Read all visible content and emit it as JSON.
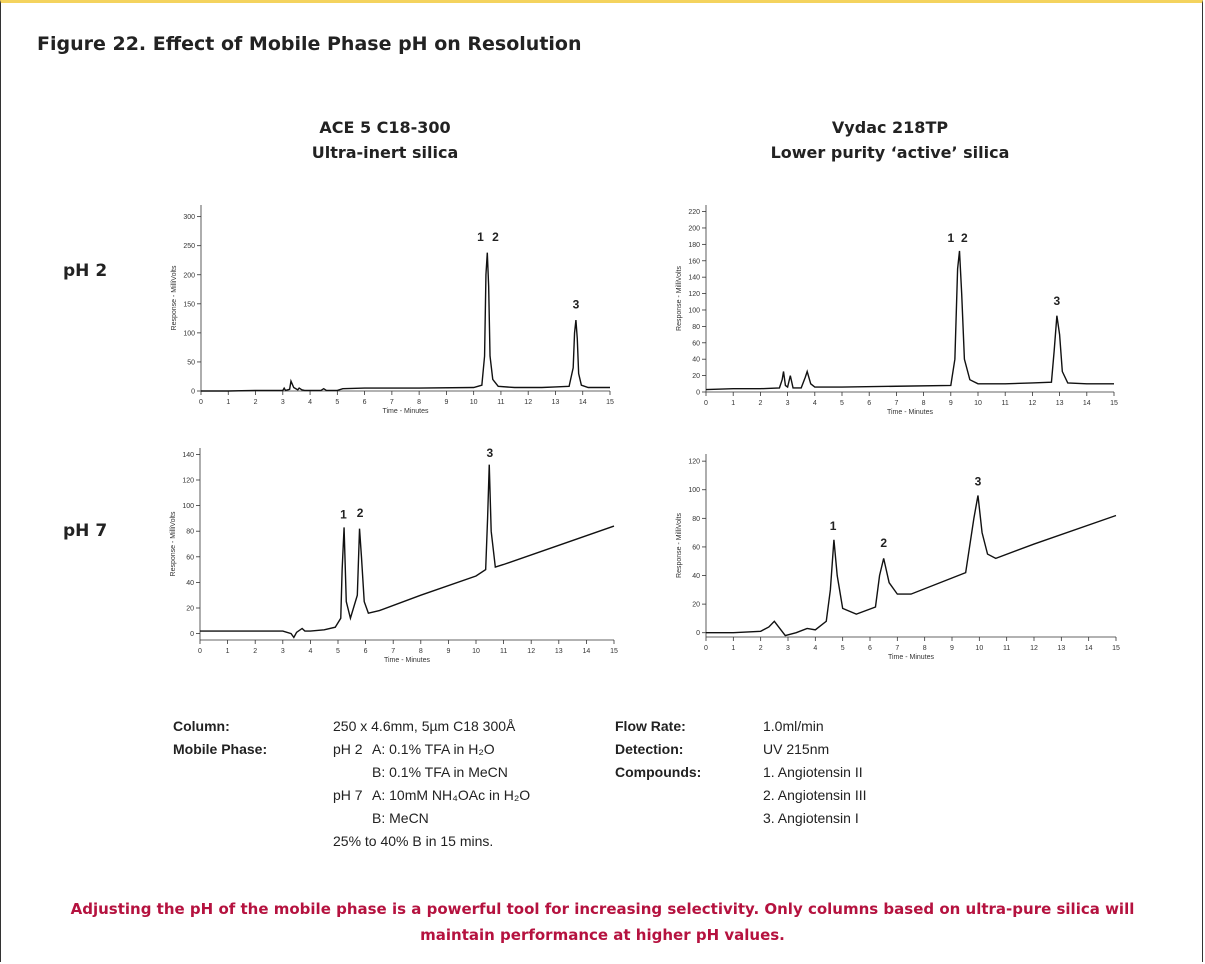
{
  "title": "Figure 22. Effect of Mobile Phase pH on Resolution",
  "columns": [
    {
      "name": "ACE 5 C18-300",
      "subtitle": "Ultra-inert silica"
    },
    {
      "name": "Vydac 218TP",
      "subtitle": "Lower purity ‘active’ silica"
    }
  ],
  "rows": [
    "pH 2",
    "pH 7"
  ],
  "chart_data": [
    {
      "type": "line",
      "x_label": "Time - Minutes",
      "y_label": "Response - MilliVolts",
      "color": "#111111",
      "xlim": [
        0,
        15
      ],
      "xticks": [
        0,
        1,
        2,
        3,
        4,
        5,
        6,
        7,
        8,
        9,
        10,
        11,
        12,
        13,
        14,
        15
      ],
      "ylim": [
        0,
        320
      ],
      "yticks": [
        0,
        50,
        100,
        150,
        200,
        250,
        300
      ],
      "x": [
        0,
        1,
        2,
        3,
        3.05,
        3.1,
        3.25,
        3.3,
        3.4,
        3.55,
        3.6,
        3.7,
        3.8,
        4,
        4.4,
        4.5,
        4.6,
        5,
        5.2,
        6,
        8,
        10,
        10.3,
        10.4,
        10.45,
        10.5,
        10.55,
        10.6,
        10.7,
        10.9,
        11.5,
        12,
        12.5,
        13,
        13.5,
        13.65,
        13.7,
        13.75,
        13.8,
        13.85,
        13.95,
        14.2,
        15
      ],
      "values": [
        0,
        0,
        1,
        1,
        5,
        1,
        3,
        17,
        6,
        2,
        5,
        2,
        1,
        1,
        1,
        4,
        1,
        1,
        4,
        5,
        5,
        6,
        10,
        60,
        200,
        238,
        180,
        60,
        20,
        8,
        6,
        6,
        6,
        7,
        8,
        40,
        100,
        122,
        90,
        30,
        10,
        6,
        6
      ],
      "annotations": [
        {
          "text": "1",
          "x": 10.25,
          "y": 258
        },
        {
          "text": "2",
          "x": 10.8,
          "y": 258
        },
        {
          "text": "3",
          "x": 13.75,
          "y": 142
        }
      ]
    },
    {
      "type": "line",
      "x_label": "Time - Minutes",
      "y_label": "Response - MilliVolts",
      "color": "#111111",
      "xlim": [
        0,
        15
      ],
      "xticks": [
        0,
        1,
        2,
        3,
        4,
        5,
        6,
        7,
        8,
        9,
        10,
        11,
        12,
        13,
        14,
        15
      ],
      "ylim": [
        0,
        228
      ],
      "yticks": [
        0,
        20,
        40,
        60,
        80,
        100,
        120,
        140,
        160,
        180,
        200,
        220
      ],
      "x": [
        0,
        1,
        2,
        2.7,
        2.8,
        2.85,
        2.92,
        3.0,
        3.1,
        3.2,
        3.5,
        3.65,
        3.72,
        3.85,
        4,
        5,
        7,
        9,
        9.15,
        9.25,
        9.32,
        9.4,
        9.5,
        9.7,
        10,
        11,
        12,
        12.7,
        12.8,
        12.9,
        13.0,
        13.1,
        13.3,
        14,
        15
      ],
      "values": [
        3,
        4,
        4,
        5,
        15,
        25,
        8,
        6,
        20,
        5,
        5,
        18,
        25,
        10,
        6,
        6,
        7,
        8,
        40,
        150,
        172,
        120,
        40,
        15,
        10,
        10,
        11,
        12,
        50,
        93,
        70,
        25,
        11,
        10,
        10
      ],
      "annotations": [
        {
          "text": "1",
          "x": 9.0,
          "y": 183
        },
        {
          "text": "2",
          "x": 9.5,
          "y": 183
        },
        {
          "text": "3",
          "x": 12.9,
          "y": 106
        }
      ]
    },
    {
      "type": "line",
      "x_label": "Time - Minutes",
      "y_label": "Response - MilliVolts",
      "color": "#111111",
      "xlim": [
        0,
        15
      ],
      "xticks": [
        0,
        1,
        2,
        3,
        4,
        5,
        6,
        7,
        8,
        9,
        10,
        11,
        12,
        13,
        14,
        15
      ],
      "ylim": [
        -5,
        145
      ],
      "yticks": [
        0,
        20,
        40,
        60,
        80,
        100,
        120,
        140
      ],
      "x": [
        0,
        1,
        2,
        3,
        3.3,
        3.4,
        3.5,
        3.7,
        3.8,
        4,
        4.5,
        4.9,
        5.1,
        5.15,
        5.22,
        5.3,
        5.45,
        5.7,
        5.78,
        5.85,
        5.95,
        6.1,
        6.5,
        8,
        10,
        10.35,
        10.42,
        10.48,
        10.55,
        10.7,
        11,
        13,
        15
      ],
      "values": [
        2,
        2,
        2,
        2,
        0,
        -3,
        1,
        4,
        2,
        2,
        3,
        5,
        12,
        50,
        83,
        25,
        12,
        30,
        82,
        60,
        25,
        16,
        18,
        30,
        45,
        50,
        90,
        132,
        80,
        52,
        54,
        69,
        84
      ],
      "annotations": [
        {
          "text": "1",
          "x": 5.2,
          "y": 90
        },
        {
          "text": "2",
          "x": 5.8,
          "y": 91
        },
        {
          "text": "3",
          "x": 10.5,
          "y": 138
        }
      ]
    },
    {
      "type": "line",
      "x_label": "Time - Minutes",
      "y_label": "Response - MilliVolts",
      "color": "#111111",
      "xlim": [
        0,
        15
      ],
      "xticks": [
        0,
        1,
        2,
        3,
        4,
        5,
        6,
        7,
        8,
        9,
        10,
        11,
        12,
        13,
        14,
        15
      ],
      "ylim": [
        -3,
        125
      ],
      "yticks": [
        0,
        20,
        40,
        60,
        80,
        100,
        120
      ],
      "x": [
        0,
        1,
        2,
        2.3,
        2.5,
        2.7,
        2.9,
        3.3,
        3.7,
        4,
        4.4,
        4.55,
        4.68,
        4.8,
        5,
        5.5,
        6.2,
        6.35,
        6.5,
        6.7,
        7,
        7.5,
        9.5,
        9.8,
        9.95,
        10.1,
        10.3,
        10.6,
        12,
        15
      ],
      "values": [
        0,
        0,
        1,
        4,
        8,
        3,
        -2,
        0,
        3,
        2,
        8,
        30,
        65,
        40,
        17,
        13,
        18,
        40,
        52,
        35,
        27,
        27,
        42,
        80,
        96,
        70,
        55,
        52,
        62,
        82
      ],
      "annotations": [
        {
          "text": "1",
          "x": 4.65,
          "y": 72
        },
        {
          "text": "2",
          "x": 6.5,
          "y": 60
        },
        {
          "text": "3",
          "x": 9.95,
          "y": 103
        }
      ]
    }
  ],
  "conditions": {
    "column": {
      "label": "Column:",
      "value": "250 x 4.6mm, 5µm C18 300Å"
    },
    "mobile_phase": {
      "label": "Mobile Phase:",
      "groups": [
        {
          "ph": "pH 2",
          "lines": [
            "A: 0.1% TFA in H₂O",
            "B: 0.1% TFA in MeCN"
          ]
        },
        {
          "ph": "pH 7",
          "lines": [
            "A: 10mM NH₄OAc in H₂O",
            "B: MeCN"
          ]
        }
      ],
      "gradient": "25% to 40% B in 15 mins."
    },
    "flow_rate": {
      "label": "Flow Rate:",
      "value": "1.0ml/min"
    },
    "detection": {
      "label": "Detection:",
      "value": "UV 215nm"
    },
    "compounds": {
      "label": "Compounds:",
      "items": [
        "1. Angiotensin II",
        "2. Angiotensin III",
        "3. Angiotensin I"
      ]
    }
  },
  "footer": "Adjusting the pH of the mobile phase is a powerful tool for increasing selectivity. Only columns based on ultra-pure silica will maintain performance at higher pH values."
}
